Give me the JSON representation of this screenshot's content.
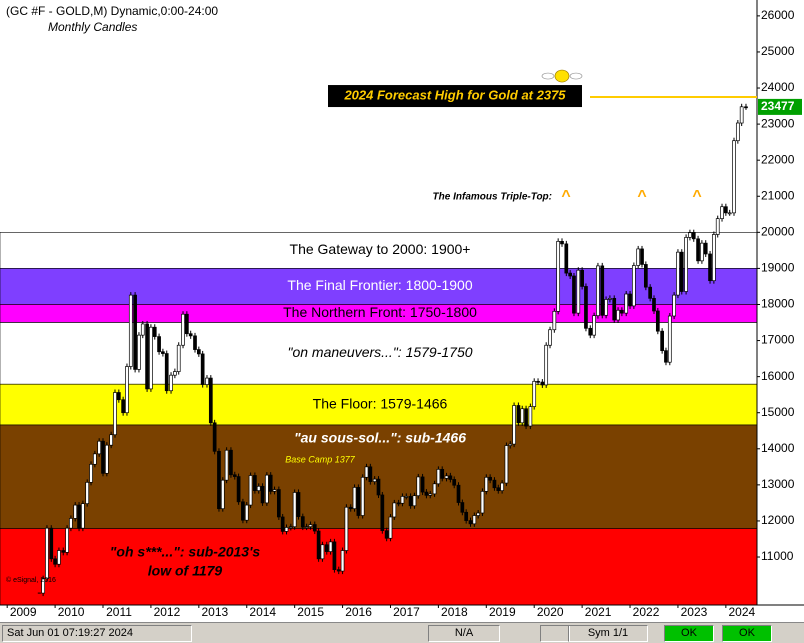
{
  "chart_data": {
    "type": "candlestick",
    "title": "(GC #F - GOLD,M) Dynamic,0:00-24:00",
    "subtitle": "Monthly Candles",
    "xlim": [
      2008.85,
      2024.65
    ],
    "xticks": [
      2009,
      2010,
      2011,
      2012,
      2013,
      2014,
      2015,
      2016,
      2017,
      2018,
      2019,
      2020,
      2021,
      2022,
      2023,
      2024
    ],
    "ylim": [
      9670,
      26440
    ],
    "yticks": [
      11000,
      12000,
      13000,
      14000,
      15000,
      16000,
      17000,
      18000,
      19000,
      20000,
      21000,
      22000,
      23000,
      24000,
      25000,
      26000
    ],
    "grid": false,
    "up_color": "#ffffff",
    "down_color": "#000000",
    "x": [
      2009.67,
      2009.75,
      2009.83,
      2009.92,
      2010.0,
      2010.08,
      2010.17,
      2010.25,
      2010.33,
      2010.42,
      2010.5,
      2010.58,
      2010.67,
      2010.75,
      2010.83,
      2010.92,
      2011.0,
      2011.08,
      2011.17,
      2011.25,
      2011.33,
      2011.42,
      2011.5,
      2011.58,
      2011.67,
      2011.75,
      2011.83,
      2011.92,
      2012.0,
      2012.08,
      2012.17,
      2012.25,
      2012.33,
      2012.42,
      2012.5,
      2012.58,
      2012.67,
      2012.75,
      2012.83,
      2012.92,
      2013.0,
      2013.08,
      2013.17,
      2013.25,
      2013.33,
      2013.42,
      2013.5,
      2013.58,
      2013.67,
      2013.75,
      2013.83,
      2013.92,
      2014.0,
      2014.08,
      2014.17,
      2014.25,
      2014.33,
      2014.42,
      2014.5,
      2014.58,
      2014.67,
      2014.75,
      2014.83,
      2014.92,
      2015.0,
      2015.08,
      2015.17,
      2015.25,
      2015.33,
      2015.42,
      2015.5,
      2015.58,
      2015.67,
      2015.75,
      2015.83,
      2015.92,
      2016.0,
      2016.08,
      2016.17,
      2016.25,
      2016.33,
      2016.42,
      2016.5,
      2016.58,
      2016.67,
      2016.75,
      2016.83,
      2016.92,
      2017.0,
      2017.08,
      2017.17,
      2017.25,
      2017.33,
      2017.42,
      2017.5,
      2017.58,
      2017.67,
      2017.75,
      2017.83,
      2017.92,
      2018.0,
      2018.08,
      2018.17,
      2018.25,
      2018.33,
      2018.42,
      2018.5,
      2018.58,
      2018.67,
      2018.75,
      2018.83,
      2018.92,
      2019.0,
      2019.08,
      2019.17,
      2019.25,
      2019.33,
      2019.42,
      2019.5,
      2019.58,
      2019.67,
      2019.75,
      2019.83,
      2019.92,
      2020.0,
      2020.08,
      2020.17,
      2020.25,
      2020.33,
      2020.42,
      2020.5,
      2020.58,
      2020.67,
      2020.75,
      2020.83,
      2020.92,
      2021.0,
      2021.08,
      2021.17,
      2021.25,
      2021.33,
      2021.42,
      2021.5,
      2021.58,
      2021.67,
      2021.75,
      2021.83,
      2021.92,
      2022.0,
      2022.08,
      2022.17,
      2022.25,
      2022.33,
      2022.42,
      2022.5,
      2022.58,
      2022.67,
      2022.75,
      2022.83,
      2022.92,
      2023.0,
      2023.08,
      2023.17,
      2023.25,
      2023.33,
      2023.42,
      2023.5,
      2023.58,
      2023.67,
      2023.75,
      2023.83,
      2023.92,
      2024.0,
      2024.08,
      2024.17,
      2024.25,
      2024.33,
      2024.42
    ],
    "close": [
      10000,
      10400,
      11800,
      10950,
      10800,
      11180,
      11130,
      11800,
      12070,
      12440,
      11800,
      12480,
      13070,
      13570,
      13860,
      14210,
      13320,
      14100,
      14390,
      15560,
      15360,
      15000,
      16280,
      18260,
      16200,
      17150,
      17460,
      15660,
      17370,
      17110,
      16690,
      16640,
      15610,
      16040,
      16140,
      16870,
      17730,
      17190,
      17130,
      16750,
      16630,
      15780,
      15960,
      14720,
      13930,
      12340,
      13130,
      13960,
      13280,
      13230,
      12530,
      12020,
      12440,
      13260,
      12840,
      12960,
      12500,
      13270,
      12820,
      12870,
      12110,
      11710,
      11820,
      11840,
      12790,
      12120,
      11830,
      11840,
      11900,
      11720,
      10950,
      11340,
      11150,
      11420,
      10650,
      10610,
      11180,
      12380,
      12340,
      12930,
      12150,
      13210,
      13500,
      13090,
      13160,
      12720,
      11730,
      11520,
      12110,
      12500,
      12490,
      12680,
      12680,
      12420,
      12700,
      13220,
      12800,
      12710,
      12750,
      13030,
      13430,
      13180,
      13250,
      13150,
      12990,
      12510,
      12240,
      12010,
      11920,
      12150,
      12220,
      12820,
      13210,
      13130,
      12920,
      12840,
      13050,
      14090,
      14130,
      15200,
      14720,
      15110,
      14630,
      15170,
      15870,
      15850,
      15770,
      16870,
      17300,
      17810,
      19750,
      19680,
      18870,
      18790,
      17760,
      18950,
      18500,
      17340,
      17150,
      17690,
      19070,
      17700,
      18140,
      18170,
      17570,
      17840,
      17760,
      18290,
      17960,
      19080,
      19540,
      19110,
      18480,
      18170,
      17820,
      17260,
      16720,
      16400,
      17680,
      18260,
      19450,
      18360,
      19860,
      19990,
      19820,
      19210,
      19700,
      19400,
      18660,
      19940,
      20380,
      20710,
      20540,
      20540,
      22540,
      23030,
      23480,
      23477
    ],
    "last_price": 23477,
    "forecast": {
      "label": "2024 Forecast High for Gold at 2375",
      "value": 23750
    },
    "annotations": [
      {
        "text": "The Infamous Triple-Top:"
      },
      {
        "text": "^"
      },
      {
        "text": "^"
      },
      {
        "text": "^"
      }
    ],
    "bands": [
      {
        "label": "The Gateway to 2000:  1900+",
        "from": 19000,
        "to": 20000,
        "color": "#ffffff",
        "text_color": "#000000"
      },
      {
        "label": "The Final Frontier:  1800-1900",
        "from": 18000,
        "to": 19000,
        "color": "#7f3fff",
        "text_color": "#ffffff"
      },
      {
        "label": "The Northern Front:  1750-1800",
        "from": 17500,
        "to": 18000,
        "color": "#ff00ff",
        "text_color": "#000000"
      },
      {
        "label": "\"on maneuvers...\":  1579-1750",
        "from": 15790,
        "to": 17500,
        "color": "#ffffff",
        "text_color": "#000000"
      },
      {
        "label": "The Floor:  1579-1466",
        "from": 14660,
        "to": 15790,
        "color": "#ffff00",
        "text_color": "#000000"
      },
      {
        "label": "\"au sous-sol...\":  sub-1466",
        "from": 11790,
        "to": 14660,
        "color": "#7a4100",
        "text_color": "#ffffff"
      },
      {
        "label": "\"oh s***...\":  sub-2013's",
        "to": 11790,
        "color": "#ff0000",
        "text_color": "#000000"
      }
    ],
    "base_camp": "Base Camp 1377",
    "red_note_line2": "low of 1179",
    "copyright": "© eSignal, 2016",
    "status": {
      "datetime": "Sat Jun 01 07:19:27 2024",
      "field": "N/A",
      "sym": "Sym 1/1",
      "ok1": "OK",
      "ok2": "OK"
    }
  }
}
